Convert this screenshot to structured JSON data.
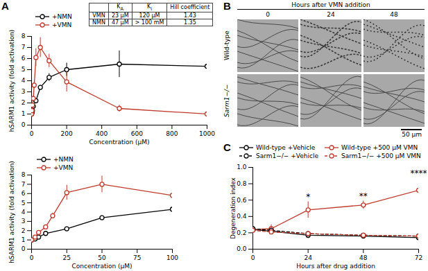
{
  "chart_data": [
    {
      "type": "line",
      "panel": "A",
      "x_label": "Concentration (µM)",
      "y_label": "hSARM1 activity (fold activation)",
      "xlim": [
        0,
        1000
      ],
      "xticks": [
        0,
        200,
        400,
        600,
        800,
        1000
      ],
      "ylim": [
        0,
        8
      ],
      "yticks": [
        0,
        1,
        2,
        3,
        4,
        5,
        6,
        7,
        8
      ],
      "legend": "top-left",
      "series": [
        {
          "name": "+NMN",
          "color": "#000000",
          "marker": "circle",
          "line_style": "solid",
          "x": [
            0,
            2.5,
            5,
            10,
            25,
            50,
            100,
            200,
            500,
            1000
          ],
          "values": [
            1.0,
            1.1,
            1.3,
            1.7,
            2.2,
            3.4,
            4.3,
            5.0,
            5.5,
            5.3
          ],
          "errors": [
            0.05,
            0.1,
            0.1,
            0.1,
            0.15,
            0.2,
            0.35,
            0.6,
            1.2,
            1.0
          ]
        },
        {
          "name": "+VMN",
          "color": "#c0392b",
          "marker": "circle",
          "line_style": "solid",
          "x": [
            0,
            2.5,
            5,
            10,
            15,
            25,
            50,
            100,
            200,
            500,
            1000
          ],
          "values": [
            1.0,
            1.3,
            1.8,
            2.4,
            3.6,
            6.1,
            7.0,
            5.8,
            3.9,
            1.5,
            1.0
          ],
          "errors": [
            0.05,
            0.1,
            0.1,
            0.2,
            0.3,
            0.8,
            0.9,
            0.6,
            0.9,
            0.3,
            0.1
          ]
        }
      ],
      "table": {
        "header": [
          {
            "text": "K",
            "sub": "A"
          },
          {
            "text": "K",
            "sub": "i"
          },
          "Hill coefficient"
        ],
        "rows": [
          [
            "VMN",
            "23 µM",
            "120 µM",
            "1.43"
          ],
          [
            "NMN",
            "47 µM",
            "> 100 mM",
            "1.35"
          ]
        ]
      },
      "inset": {
        "x_label": "Concentration (µM)",
        "y_label": "hSARM1 activity (fold activation)",
        "xlim": [
          0,
          100
        ],
        "xticks": [
          0,
          25,
          50,
          75,
          100
        ],
        "ylim": [
          0,
          8
        ],
        "yticks": [
          0,
          1,
          2,
          3,
          4,
          5,
          6,
          7,
          8
        ],
        "legend": "top-left"
      }
    },
    {
      "type": "image_grid",
      "panel": "B",
      "title": "Hours after VMN addition",
      "columns": [
        "0",
        "24",
        "48"
      ],
      "rows": [
        "Wild-type",
        "Sarm1−/−"
      ],
      "scale_bar": "50 µm"
    },
    {
      "type": "line",
      "panel": "C",
      "x_label": "Hours after drug addition",
      "y_label": "Degeneration index",
      "xlim": [
        0,
        72
      ],
      "xticks": [
        0,
        24,
        48,
        72
      ],
      "ylim": [
        0,
        1
      ],
      "yticks": [
        {
          "value": 0,
          "label": "0.0"
        },
        {
          "value": 0.2,
          "label": "0.2"
        },
        {
          "value": 0.4,
          "label": "0.4"
        },
        {
          "value": 0.6,
          "label": "0.6"
        },
        {
          "value": 0.8,
          "label": "0.8"
        },
        {
          "value": 1,
          "label": "1.0"
        }
      ],
      "legend": "top-left",
      "x": [
        0,
        8,
        24,
        48,
        72
      ],
      "series": [
        {
          "name": "Wild-type +Vehicle",
          "color": "#000000",
          "marker": "circle",
          "line_style": "solid",
          "values": [
            0.24,
            0.22,
            0.17,
            0.16,
            0.14
          ],
          "errors": [
            0.04,
            0.03,
            0.04,
            0.03,
            0.03
          ]
        },
        {
          "name": "Wild-type +500 µM VMN",
          "color": "#c0392b",
          "marker": "circle",
          "line_style": "solid",
          "values": [
            0.24,
            0.25,
            0.48,
            0.54,
            0.72
          ],
          "errors": [
            0.05,
            0.05,
            0.1,
            0.05,
            0.15
          ]
        },
        {
          "name": "Sarm1−/− +Vehicle",
          "color": "#000000",
          "marker": "circle",
          "line_style": "dashed",
          "values": [
            0.25,
            0.23,
            0.19,
            0.17,
            0.16
          ],
          "errors": [
            0.04,
            0.03,
            0.03,
            0.02,
            0.03
          ]
        },
        {
          "name": "Sarm1−/− +500 µM VMN",
          "color": "#c0392b",
          "marker": "circle",
          "line_style": "dashed",
          "values": [
            0.23,
            0.21,
            0.19,
            0.17,
            0.16
          ],
          "errors": [
            0.03,
            0.03,
            0.03,
            0.02,
            0.02
          ]
        }
      ],
      "annotations": [
        {
          "x": 24,
          "text": "*",
          "series": "Wild-type +500 µM VMN"
        },
        {
          "x": 48,
          "text": "**",
          "series": "Wild-type +500 µM VMN"
        },
        {
          "x": 72,
          "text": "****",
          "series": "Wild-type +500 µM VMN"
        }
      ]
    }
  ]
}
